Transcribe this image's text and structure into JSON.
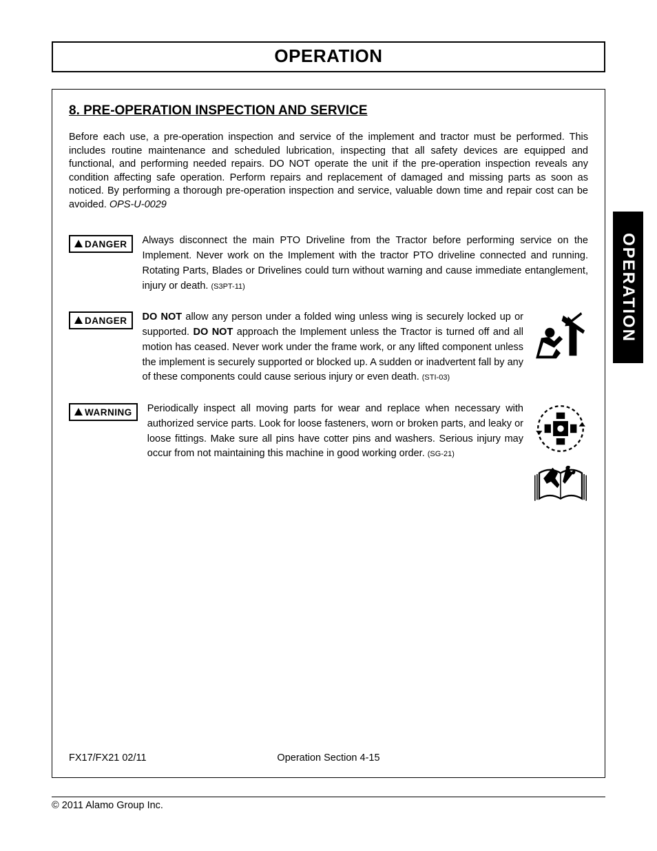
{
  "title": "OPERATION",
  "side_tab": "OPERATION",
  "section": {
    "heading": "8. PRE-OPERATION INSPECTION AND SERVICE",
    "intro_text": "Before each use, a pre-operation inspection and service of the implement and tractor must be performed. This includes routine maintenance and scheduled lubrication, inspecting that all safety devices are equipped and functional, and performing needed repairs.  DO NOT operate the unit if the pre-operation inspection reveals any condition affecting safe operation.  Perform repairs and replacement of damaged and missing parts as soon as noticed.  By performing a thorough pre-operation inspection and service, valuable down time and repair cost can be avoided.  ",
    "intro_ref": "OPS-U-0029"
  },
  "warnings": [
    {
      "label": "DANGER",
      "text": "Always disconnect the main PTO Driveline from the Tractor before performing service on the Implement.  Never work on the Implement with the tractor PTO driveline connected and running. Rotating Parts, Blades or Drivelines could turn without warning and cause immediate entanglement, injury or death.  ",
      "code": "(S3PT-11)",
      "bold_terms": [],
      "icon": null
    },
    {
      "label": "DANGER",
      "text_parts": [
        {
          "b": true,
          "t": "DO NOT"
        },
        {
          "b": false,
          "t": " allow any person under a folded wing unless wing is securely locked up or supported.  "
        },
        {
          "b": true,
          "t": "DO NOT"
        },
        {
          "b": false,
          "t": " approach the Implement unless the Tractor is turned off and all motion has ceased.  Never work under the frame work, or any lifted component unless the implement is securely supported or blocked up.  A sudden or inadvertent fall by any of these components could cause serious injury or even death.    "
        }
      ],
      "code": "(STI-03)",
      "icon": "crush-hazard"
    },
    {
      "label": "WARNING",
      "text": "Periodically inspect all moving parts for wear and replace when necessary with authorized service parts.  Look for loose fasteners, worn or broken parts, and leaky or loose fittings.  Make sure all pins have cotter pins and washers.  Serious injury may occur from not maintaining this machine in good working order.  ",
      "code": "(SG-21)",
      "icon": "moving-parts-manual"
    }
  ],
  "footer": {
    "left": "FX17/FX21  02/11",
    "center": "Operation Section 4-15"
  },
  "copyright": "© 2011 Alamo Group Inc.",
  "colors": {
    "text": "#000000",
    "background": "#ffffff",
    "tab_bg": "#000000",
    "tab_fg": "#ffffff"
  }
}
